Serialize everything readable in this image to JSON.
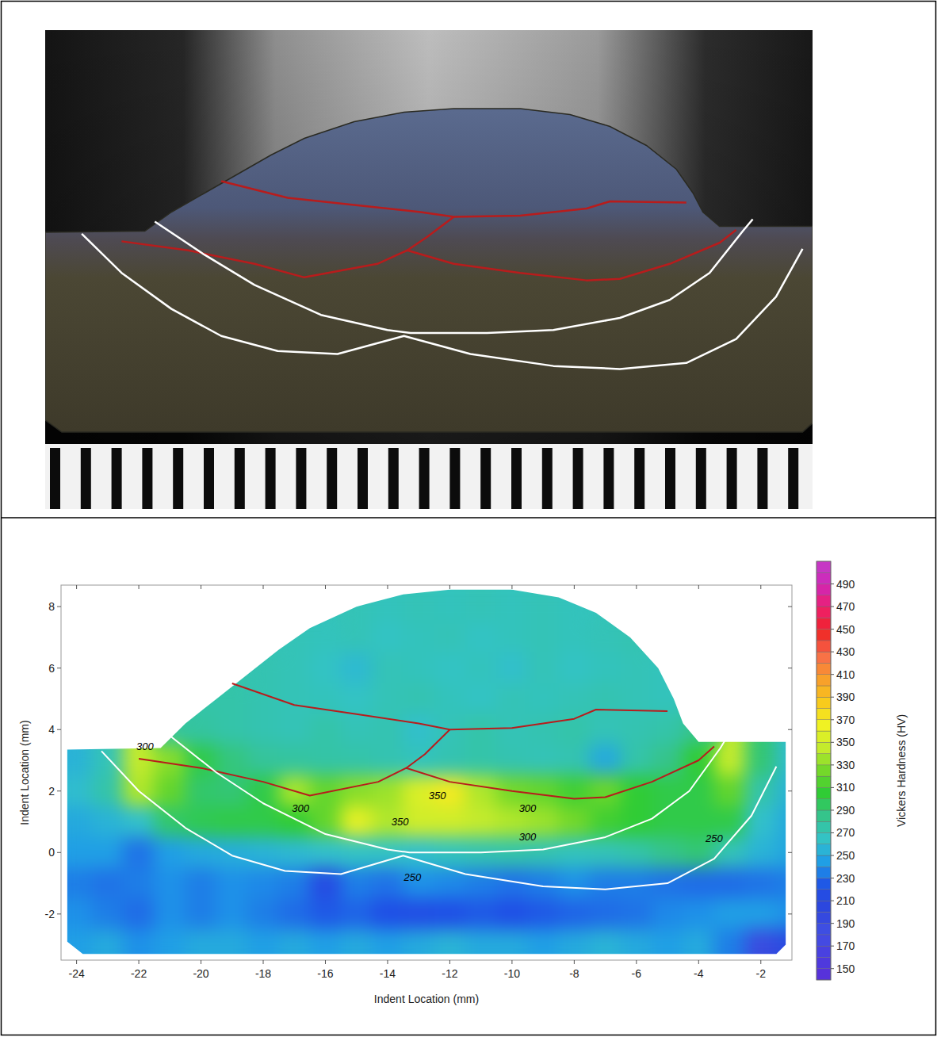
{
  "chart_data": {
    "type": "heatmap",
    "xlabel": "Indent Location (mm)",
    "ylabel": "Indent Location (mm)",
    "xlim": [
      -24.5,
      -1
    ],
    "ylim": [
      -3.5,
      8.7
    ],
    "xticks": [
      -24,
      -22,
      -20,
      -18,
      -16,
      -14,
      -12,
      -10,
      -8,
      -6,
      -4,
      -2
    ],
    "yticks": [
      -2,
      0,
      2,
      4,
      6,
      8
    ],
    "colorbar": {
      "label": "Vickers Hardness (HV)",
      "range": [
        140,
        510
      ],
      "ticks": [
        150,
        170,
        190,
        210,
        230,
        250,
        270,
        290,
        310,
        330,
        350,
        370,
        390,
        410,
        430,
        450,
        470,
        490
      ]
    },
    "heatmap": {
      "x": [
        -24,
        -23,
        -22,
        -21,
        -20,
        -19,
        -18,
        -17,
        -16,
        -15,
        -14,
        -13,
        -12,
        -11,
        -10,
        -9,
        -8,
        -7,
        -6,
        -5,
        -4,
        -3,
        -2,
        -1
      ],
      "y": [
        8,
        7,
        6,
        5,
        4,
        3,
        2,
        1,
        0,
        -1,
        -2,
        -3
      ],
      "values": [
        [
          null,
          null,
          null,
          null,
          null,
          null,
          null,
          null,
          null,
          270,
          268,
          270,
          268,
          270,
          268,
          270,
          268,
          null,
          null,
          null,
          null,
          null,
          null,
          null
        ],
        [
          null,
          null,
          null,
          null,
          null,
          null,
          null,
          270,
          268,
          270,
          265,
          268,
          270,
          265,
          268,
          270,
          268,
          270,
          272,
          null,
          null,
          null,
          null,
          null
        ],
        [
          null,
          null,
          null,
          null,
          null,
          null,
          272,
          270,
          265,
          258,
          270,
          268,
          265,
          268,
          262,
          270,
          265,
          268,
          270,
          268,
          null,
          null,
          null,
          null
        ],
        [
          null,
          null,
          null,
          null,
          275,
          275,
          272,
          270,
          268,
          265,
          270,
          272,
          268,
          265,
          270,
          268,
          270,
          272,
          270,
          268,
          272,
          null,
          null,
          null
        ],
        [
          null,
          null,
          null,
          280,
          278,
          275,
          272,
          270,
          275,
          270,
          272,
          262,
          270,
          275,
          270,
          272,
          275,
          270,
          272,
          275,
          285,
          null,
          null,
          null
        ],
        [
          255,
          270,
          345,
          330,
          300,
          288,
          280,
          278,
          276,
          275,
          272,
          268,
          272,
          275,
          272,
          270,
          272,
          250,
          275,
          285,
          305,
          345,
          290,
          260
        ],
        [
          260,
          275,
          340,
          320,
          292,
          290,
          300,
          338,
          320,
          330,
          335,
          355,
          370,
          340,
          325,
          320,
          310,
          322,
          305,
          300,
          300,
          320,
          275,
          255
        ],
        [
          250,
          255,
          262,
          292,
          298,
          300,
          300,
          305,
          320,
          360,
          340,
          350,
          350,
          345,
          340,
          335,
          325,
          310,
          305,
          300,
          300,
          300,
          262,
          250
        ],
        [
          245,
          245,
          232,
          245,
          250,
          252,
          255,
          258,
          262,
          265,
          265,
          262,
          268,
          272,
          275,
          272,
          268,
          270,
          275,
          285,
          290,
          270,
          255,
          248
        ],
        [
          235,
          232,
          235,
          240,
          235,
          240,
          238,
          235,
          215,
          235,
          232,
          240,
          238,
          235,
          232,
          235,
          240,
          235,
          235,
          232,
          230,
          230,
          232,
          235
        ],
        [
          240,
          235,
          230,
          240,
          235,
          240,
          235,
          230,
          225,
          228,
          222,
          220,
          222,
          225,
          222,
          225,
          228,
          230,
          232,
          238,
          240,
          245,
          245,
          240
        ],
        [
          245,
          250,
          240,
          245,
          250,
          250,
          245,
          250,
          245,
          250,
          245,
          250,
          255,
          250,
          250,
          245,
          250,
          255,
          250,
          245,
          250,
          235,
          190,
          210
        ]
      ]
    },
    "outline": {
      "x": [
        -24.3,
        -24.3,
        -21.3,
        -20.5,
        -19.5,
        -18.5,
        -17.5,
        -16.5,
        -15,
        -13.5,
        -12,
        -10,
        -8.5,
        -7.3,
        -6.2,
        -5.3,
        -4.8,
        -4.5,
        -4.0,
        -1.2,
        -1.2,
        -1.5,
        -23.8
      ],
      "y": [
        -2.9,
        3.35,
        3.4,
        4.2,
        5.0,
        5.8,
        6.6,
        7.3,
        8.0,
        8.4,
        8.55,
        8.55,
        8.3,
        7.8,
        7.0,
        6.0,
        5.0,
        4.2,
        3.6,
        3.6,
        -3.0,
        -3.3,
        -3.3
      ]
    },
    "series": [
      {
        "type": "line",
        "color": "#b81c1c",
        "x": [
          -19,
          -17,
          -15,
          -13,
          -12,
          -10,
          -8,
          -7.3,
          -5
        ],
        "values": [
          5.5,
          4.8,
          4.5,
          4.2,
          4.0,
          4.05,
          4.35,
          4.65,
          4.6
        ]
      },
      {
        "type": "line",
        "color": "#b81c1c",
        "x": [
          -22,
          -20,
          -18,
          -16.5,
          -14.3,
          -13.4,
          -12,
          -10,
          -8,
          -7,
          -5.5,
          -4,
          -3.5
        ],
        "values": [
          3.05,
          2.75,
          2.3,
          1.85,
          2.3,
          2.75,
          2.3,
          2.0,
          1.75,
          1.8,
          2.3,
          3.0,
          3.45
        ]
      },
      {
        "type": "line",
        "color": "#b81c1c",
        "x": [
          -13.4,
          -12.8,
          -12
        ],
        "values": [
          2.75,
          3.2,
          4.0
        ]
      },
      {
        "type": "line",
        "color": "#ffffff",
        "x": [
          -21,
          -19.5,
          -18,
          -16,
          -14,
          -13.3,
          -11,
          -9,
          -7,
          -5.5,
          -4.3,
          -3.3,
          -3.0
        ],
        "values": [
          3.8,
          2.6,
          1.6,
          0.6,
          0.1,
          0.0,
          0.0,
          0.1,
          0.5,
          1.1,
          2.0,
          3.4,
          3.9
        ]
      },
      {
        "type": "line",
        "color": "#ffffff",
        "x": [
          -23.2,
          -22,
          -20.5,
          -19,
          -17.3,
          -15.5,
          -13.5,
          -11.5,
          -9,
          -7,
          -5,
          -3.5,
          -2.3,
          -1.5
        ],
        "values": [
          3.3,
          2.0,
          0.8,
          -0.1,
          -0.6,
          -0.7,
          -0.1,
          -0.7,
          -1.1,
          -1.2,
          -1.0,
          -0.2,
          1.2,
          2.8
        ]
      }
    ],
    "annotations": [
      {
        "text": "300",
        "x": -21.8,
        "y": 3.45
      },
      {
        "text": "300",
        "x": -16.8,
        "y": 1.45
      },
      {
        "text": "350",
        "x": -12.4,
        "y": 1.85
      },
      {
        "text": "350",
        "x": -13.6,
        "y": 1.0
      },
      {
        "text": "300",
        "x": -9.5,
        "y": 1.45
      },
      {
        "text": "300",
        "x": -9.5,
        "y": 0.5
      },
      {
        "text": "250",
        "x": -13.2,
        "y": -0.8
      },
      {
        "text": "250",
        "x": -3.5,
        "y": 0.45
      }
    ]
  }
}
